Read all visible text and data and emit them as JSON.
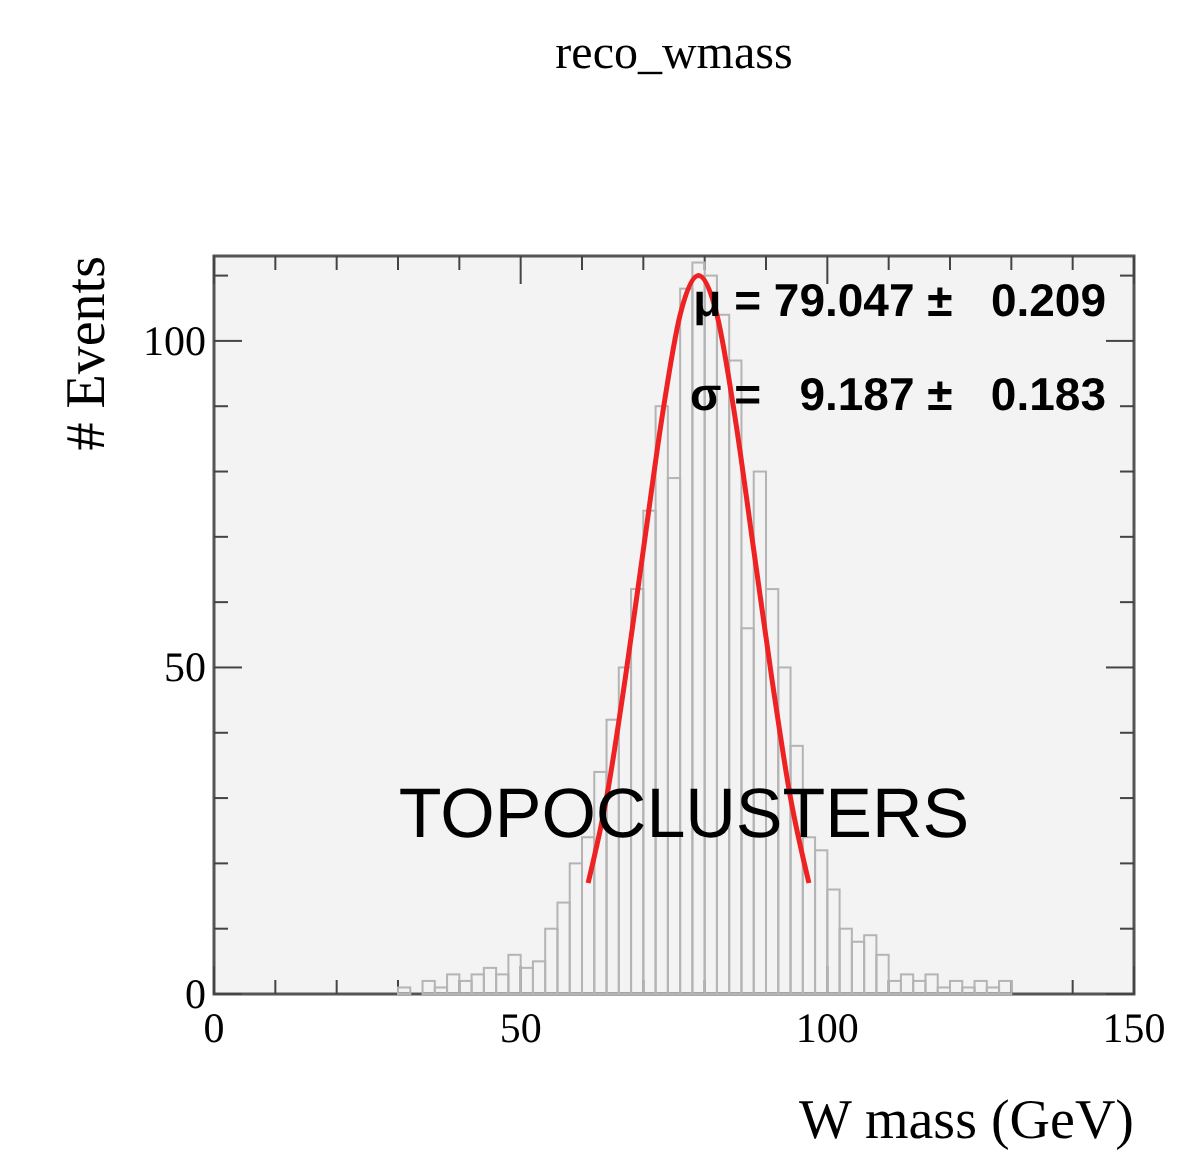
{
  "chart_data": {
    "type": "histogram",
    "title": "reco_wmass",
    "xlabel": "W mass (GeV)",
    "ylabel": "# Events",
    "bins": [
      30,
      32,
      34,
      36,
      38,
      40,
      42,
      44,
      46,
      48,
      50,
      52,
      54,
      56,
      58,
      60,
      62,
      64,
      66,
      68,
      70,
      72,
      74,
      76,
      78,
      80,
      82,
      84,
      86,
      88,
      90,
      92,
      94,
      96,
      98,
      100,
      102,
      104,
      106,
      108,
      110,
      112,
      114,
      116,
      118,
      120,
      122,
      124,
      126,
      128,
      130
    ],
    "values": [
      1,
      0,
      2,
      1,
      3,
      2,
      3,
      4,
      3,
      6,
      4,
      5,
      10,
      14,
      20,
      24,
      34,
      42,
      50,
      62,
      74,
      90,
      79,
      108,
      112,
      110,
      104,
      97,
      56,
      80,
      62,
      50,
      38,
      24,
      22,
      16,
      10,
      8,
      9,
      6,
      2,
      3,
      2,
      3,
      1,
      2,
      1,
      2,
      1,
      2
    ],
    "color": "#b4b4b4",
    "series": [
      {
        "type": "line",
        "color": "#ee2222",
        "x": [
          61,
          64,
          67,
          70,
          73,
          76,
          79,
          82,
          85,
          88,
          91,
          94,
          97
        ],
        "values": [
          17,
          30,
          48,
          68,
          88,
          104,
          110,
          104,
          88,
          68,
          48,
          30,
          17
        ]
      }
    ],
    "xlim": [
      0,
      150
    ],
    "ylim": [
      0,
      113
    ],
    "xticks": [
      0,
      {
        "value": 10,
        "label": null
      },
      {
        "value": 20,
        "label": null
      },
      {
        "value": 30,
        "label": null
      },
      {
        "value": 40,
        "label": null
      },
      50,
      {
        "value": 60,
        "label": null
      },
      {
        "value": 70,
        "label": null
      },
      {
        "value": 80,
        "label": null
      },
      {
        "value": 90,
        "label": null
      },
      100,
      {
        "value": 110,
        "label": null
      },
      {
        "value": 120,
        "label": null
      },
      {
        "value": 130,
        "label": null
      },
      {
        "value": 140,
        "label": null
      },
      150
    ],
    "yticks": [
      0,
      {
        "value": 10,
        "label": null
      },
      {
        "value": 20,
        "label": null
      },
      {
        "value": 30,
        "label": null
      },
      {
        "value": 40,
        "label": null
      },
      50,
      {
        "value": 60,
        "label": null
      },
      {
        "value": 70,
        "label": null
      },
      {
        "value": 80,
        "label": null
      },
      {
        "value": 90,
        "label": null
      },
      100,
      {
        "value": 110,
        "label": null
      }
    ],
    "annotations": [
      "μ = 79.047 ±   0.209",
      "σ =   9.187 ±   0.183",
      "TOPOCLUSTERS"
    ]
  }
}
